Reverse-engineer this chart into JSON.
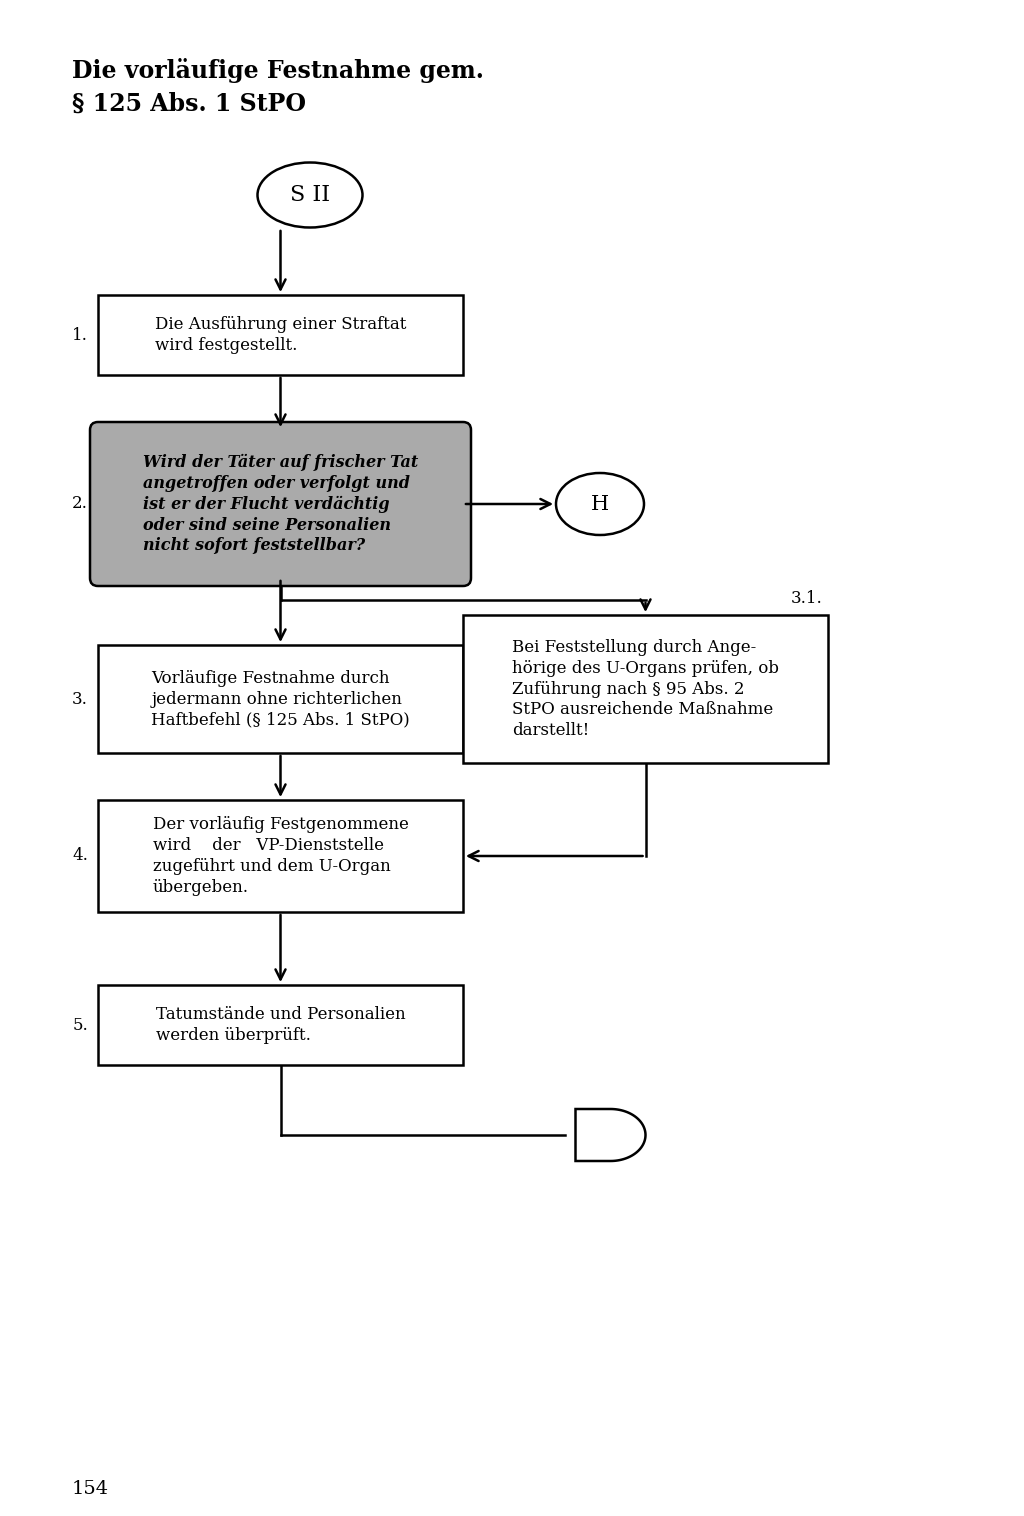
{
  "title_line1": "Die vorläufige Festnahme gem.",
  "title_line2": "§ 125 Abs. 1 StPO",
  "page_number": "154",
  "background_color": "#ffffff",
  "text_color": "#000000",
  "box1_label": "Die Ausführung einer Straftat\nwird festgestellt.",
  "box1_number": "1.",
  "box2_label": "Wird der Täter auf frischer Tat\nangetroffen oder verfolgt und\nist er der Flucht verdächtig\noder sind seine Personalien\nnicht sofort feststellbar?",
  "box2_number": "2.",
  "box3_label": "Vorläufige Festnahme durch\njedermann ohne richterlichen\nHaftbefehl (§ 125 Abs. 1 StPO)",
  "box3_number": "3.",
  "box31_label": "Bei Feststellung durch Ange-\nhörige des U-Organs prüfen, ob\nZuführung nach § 95 Abs. 2\nStPO ausreichende Maßnahme\ndarstellt!",
  "box31_number": "3.1.",
  "box4_label": "Der vorläufig Festgenommene\nwird    der   VP-Dienststelle\nzugeführt und dem U-Organ\nübergeben.",
  "box4_number": "4.",
  "box5_label": "Tatumstände und Personalien\nwerden überprüft.",
  "box5_number": "5.",
  "start_label": "S II",
  "H_label": "H"
}
